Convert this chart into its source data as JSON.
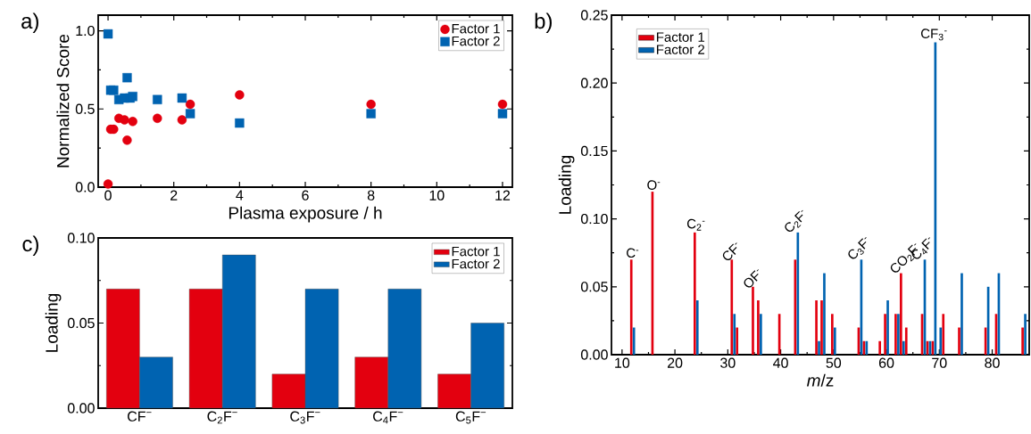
{
  "chart_data": [
    {
      "type": "scatter",
      "xlabel": "Plasma exposure / h",
      "ylabel": "Normalized Score",
      "annotations": [
        "a)"
      ],
      "series": [
        {
          "name": "Factor 1",
          "color": "#e3000f",
          "marker": "circle",
          "x": [
            0,
            0.08,
            0.17,
            0.33,
            0.5,
            0.58,
            0.75,
            1.5,
            2.25,
            2.5,
            4,
            8,
            12
          ],
          "values": [
            0.02,
            0.37,
            0.37,
            0.44,
            0.43,
            0.3,
            0.42,
            0.44,
            0.43,
            0.53,
            0.59,
            0.53,
            0.53
          ]
        },
        {
          "name": "Factor 2",
          "color": "#0063b1",
          "marker": "square",
          "x": [
            0,
            0.08,
            0.17,
            0.33,
            0.5,
            0.58,
            0.67,
            0.75,
            1.5,
            2.25,
            2.5,
            4,
            8,
            12
          ],
          "values": [
            0.98,
            0.62,
            0.62,
            0.56,
            0.57,
            0.7,
            0.57,
            0.58,
            0.56,
            0.57,
            0.47,
            0.41,
            0.47,
            0.47
          ]
        }
      ],
      "xlim": [
        -0.3,
        12.3
      ],
      "ylim": [
        0,
        1.1
      ],
      "xticks": [
        0,
        2,
        4,
        6,
        8,
        10,
        12
      ],
      "yticks": [
        {
          "value": 0,
          "label": "0.0"
        },
        {
          "value": 0.5,
          "label": "0.5"
        },
        {
          "value": 1,
          "label": "1.0"
        }
      ],
      "legend": "top right"
    },
    {
      "type": "bar",
      "xlabel": "*m*/z",
      "ylabel": "Loading",
      "annotations": [
        "b)",
        {
          "text": "C$^{-}$",
          "x": 12,
          "y": 0.07
        },
        {
          "text": "O$^{-}$",
          "x": 16,
          "y": 0.12
        },
        {
          "text": "C$_{2}$$^{-}$",
          "x": 24,
          "y": 0.09
        },
        {
          "text": "CF$^{-}$",
          "x": 31,
          "y": 0.07
        },
        {
          "text": "OF$^{-}$",
          "x": 35,
          "y": 0.05
        },
        {
          "text": "C$_{2}$F$^{-}$",
          "x": 43,
          "y": 0.09
        },
        {
          "text": "C$_{3}$F$^{-}$",
          "x": 55,
          "y": 0.07
        },
        {
          "text": "CO$_{2}$F$^{-}$",
          "x": 63,
          "y": 0.06
        },
        {
          "text": "C$_{4}$F$^{-}$",
          "x": 67,
          "y": 0.07
        },
        {
          "text": "CF$_{3}$$^{-}$",
          "x": 69,
          "y": 0.23
        }
      ],
      "series": [
        {
          "name": "Factor 1",
          "color": "#e3000f",
          "x": [
            12,
            16,
            24,
            31,
            32,
            35,
            36,
            40,
            43,
            47,
            48,
            50,
            55,
            56,
            59,
            60,
            62,
            63,
            64,
            67,
            68,
            69,
            71,
            74,
            79,
            81,
            86
          ],
          "values": [
            0.07,
            0.12,
            0.09,
            0.07,
            0.02,
            0.05,
            0.04,
            0.03,
            0.07,
            0.04,
            0.04,
            0.03,
            0.02,
            0.01,
            0.01,
            0.03,
            0.03,
            0.06,
            0.02,
            0.03,
            0.01,
            0.01,
            0.03,
            0.02,
            0.02,
            0.03,
            0.02
          ]
        },
        {
          "name": "Factor 2",
          "color": "#0063b1",
          "x": [
            12,
            24,
            31,
            36,
            43,
            47,
            48,
            50,
            55,
            56,
            60,
            62,
            63,
            67,
            68,
            69,
            70,
            74,
            79,
            81,
            86
          ],
          "values": [
            0.02,
            0.04,
            0.03,
            0.03,
            0.09,
            0.01,
            0.06,
            0.02,
            0.07,
            0.01,
            0.04,
            0.03,
            0.01,
            0.07,
            0.01,
            0.23,
            0.02,
            0.06,
            0.05,
            0.06,
            0.03
          ]
        }
      ],
      "xlim": [
        8,
        87
      ],
      "ylim": [
        0,
        0.25
      ],
      "xticks": [
        10,
        20,
        30,
        40,
        50,
        60,
        70,
        80
      ],
      "yticks": [
        {
          "value": 0,
          "label": "0.00"
        },
        {
          "value": 0.05,
          "label": "0.05"
        },
        {
          "value": 0.1,
          "label": "0.10"
        },
        {
          "value": 0.15,
          "label": "0.15"
        },
        {
          "value": 0.2,
          "label": "0.20"
        },
        {
          "value": 0.25,
          "label": "0.25"
        }
      ],
      "legend": "top left"
    },
    {
      "type": "bar",
      "ylabel": "Loading",
      "annotations": [
        "c)"
      ],
      "categories": [
        "CF$^{−}$",
        "C$_{2}$F$^{−}$",
        "C$_{3}$F$^{−}$",
        "C$_{4}$F$^{−}$",
        "C$_{5}$F$^{−}$"
      ],
      "series": [
        {
          "name": "Factor 1",
          "color": "#e3000f",
          "values": [
            0.07,
            0.07,
            0.02,
            0.03,
            0.02
          ]
        },
        {
          "name": "Factor 2",
          "color": "#0063b1",
          "values": [
            0.03,
            0.09,
            0.07,
            0.07,
            0.05
          ]
        }
      ],
      "ylim": [
        0,
        0.1
      ],
      "yticks": [
        {
          "value": 0,
          "label": "0.00"
        },
        {
          "value": 0.05,
          "label": "0.05"
        },
        {
          "value": 0.1,
          "label": "0.10"
        }
      ],
      "legend": "top right"
    }
  ]
}
